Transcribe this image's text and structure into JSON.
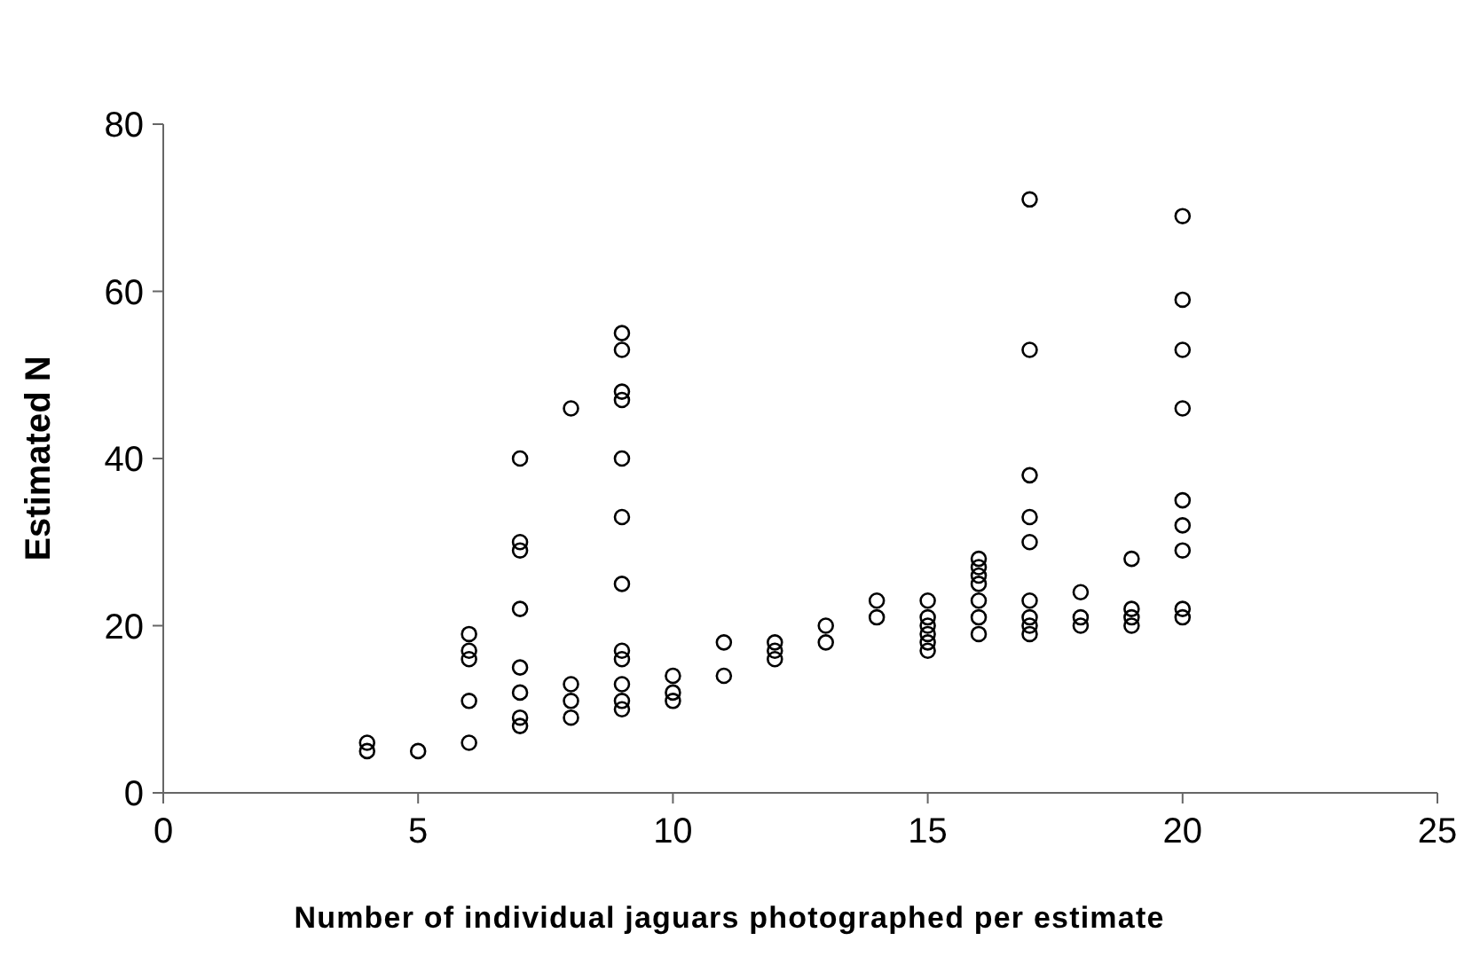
{
  "chart_data": {
    "type": "scatter",
    "xlabel": "Number of individual jaguars photographed per estimate",
    "ylabel": "Estimated N",
    "x": [
      4,
      4,
      5,
      6,
      6,
      6,
      6,
      6,
      7,
      7,
      7,
      7,
      7,
      7,
      7,
      7,
      8,
      8,
      8,
      8,
      9,
      9,
      9,
      9,
      9,
      9,
      9,
      9,
      9,
      9,
      9,
      9,
      10,
      10,
      10,
      11,
      11,
      12,
      12,
      12,
      13,
      13,
      14,
      14,
      15,
      15,
      15,
      15,
      15,
      15,
      16,
      16,
      16,
      16,
      16,
      16,
      16,
      17,
      17,
      17,
      17,
      17,
      17,
      17,
      17,
      17,
      18,
      18,
      18,
      19,
      19,
      19,
      19,
      20,
      20,
      20,
      20,
      20,
      20,
      20,
      20,
      20
    ],
    "values": [
      6,
      5,
      5,
      19,
      17,
      16,
      11,
      6,
      40,
      30,
      29,
      22,
      15,
      12,
      9,
      8,
      46,
      13,
      11,
      9,
      55,
      53,
      48,
      47,
      40,
      33,
      25,
      17,
      16,
      13,
      11,
      10,
      14,
      12,
      11,
      18,
      14,
      18,
      17,
      16,
      20,
      18,
      23,
      21,
      23,
      21,
      20,
      19,
      18,
      17,
      28,
      27,
      26,
      25,
      23,
      21,
      19,
      71,
      53,
      38,
      33,
      30,
      23,
      21,
      20,
      19,
      24,
      21,
      20,
      28,
      22,
      21,
      20,
      69,
      59,
      53,
      46,
      35,
      32,
      29,
      22,
      21
    ],
    "color": "#000000",
    "marker": "circle",
    "xlim": [
      0,
      25
    ],
    "xticks": [
      0,
      5,
      10,
      15,
      20,
      25
    ],
    "ylim": [
      0,
      80
    ],
    "yticks": [
      0,
      20,
      40,
      60,
      80
    ],
    "grid": false
  }
}
